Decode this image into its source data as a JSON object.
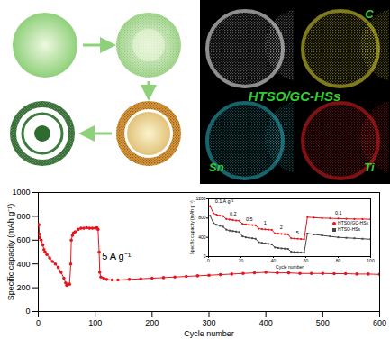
{
  "eds_maps": {
    "label": "HTSO/GC-HSs",
    "elements": [
      "C",
      "Sn",
      "Ti"
    ]
  },
  "chart_data": [
    {
      "type": "line",
      "xlabel": "Cycle number",
      "ylabel": "Specific capacity (mAh g⁻¹)",
      "x": [
        1,
        2,
        3,
        5,
        8,
        10,
        12,
        15,
        20,
        25,
        30,
        35,
        40,
        45,
        48,
        50,
        52,
        55,
        57,
        58,
        60,
        62,
        65,
        70,
        75,
        80,
        85,
        90,
        95,
        100,
        103,
        105,
        107,
        108,
        110,
        115,
        120,
        130,
        140,
        160,
        180,
        200,
        220,
        240,
        260,
        280,
        300,
        320,
        340,
        360,
        380,
        400,
        420,
        440,
        460,
        480,
        500,
        520,
        540,
        560,
        580,
        600
      ],
      "values": [
        730,
        650,
        620,
        600,
        560,
        520,
        500,
        480,
        450,
        420,
        400,
        370,
        330,
        280,
        240,
        220,
        230,
        230,
        400,
        600,
        640,
        660,
        670,
        690,
        700,
        700,
        705,
        700,
        700,
        700,
        705,
        690,
        500,
        330,
        290,
        280,
        270,
        265,
        265,
        270,
        275,
        280,
        285,
        290,
        295,
        300,
        305,
        310,
        315,
        320,
        325,
        330,
        325,
        325,
        320,
        320,
        320,
        318,
        318,
        315,
        315,
        312
      ],
      "color": "#e8141c",
      "marker": "circle",
      "line_style": "solid",
      "xlim": [
        0,
        600
      ],
      "xticks": [
        0,
        100,
        200,
        300,
        400,
        500,
        600
      ],
      "ylim": [
        0,
        1000
      ],
      "yticks": [
        0,
        200,
        400,
        600,
        800,
        1000
      ],
      "annotations": [
        {
          "text": "5 A g⁻¹",
          "x": 112,
          "y": 460
        }
      ]
    },
    {
      "type": "line",
      "xlabel": "Cycle number",
      "ylabel": "Specific capacity (mAh g⁻¹)",
      "x": [
        1,
        3,
        5,
        7,
        9,
        11,
        13,
        15,
        17,
        19,
        21,
        23,
        25,
        27,
        29,
        31,
        33,
        35,
        37,
        39,
        41,
        43,
        45,
        47,
        49,
        51,
        53,
        55,
        57,
        59,
        61,
        65,
        70,
        75,
        80,
        85,
        90,
        95,
        100
      ],
      "series": [
        {
          "name": "HTSO/GC-HSs",
          "color": "#e8141c",
          "marker": "circle",
          "values": [
            1050,
            900,
            870,
            850,
            840,
            780,
            770,
            760,
            750,
            745,
            680,
            670,
            660,
            655,
            650,
            580,
            570,
            565,
            560,
            555,
            480,
            475,
            470,
            465,
            460,
            380,
            375,
            370,
            365,
            360,
            820,
            810,
            800,
            795,
            790,
            785,
            780,
            780,
            775
          ]
        },
        {
          "name": "HTSO-HSs",
          "color": "#444444",
          "marker": "square",
          "values": [
            850,
            700,
            660,
            640,
            620,
            560,
            540,
            530,
            520,
            510,
            420,
            400,
            390,
            380,
            370,
            300,
            285,
            275,
            265,
            255,
            190,
            180,
            170,
            165,
            160,
            100,
            95,
            90,
            85,
            80,
            480,
            460,
            440,
            420,
            400,
            390,
            380,
            370,
            360
          ]
        }
      ],
      "xlim": [
        0,
        100
      ],
      "xticks": [
        0,
        20,
        40,
        60,
        80,
        100
      ],
      "ylim": [
        0,
        1200
      ],
      "yticks": [
        0,
        400,
        800,
        1200
      ],
      "legend": "right",
      "annotations": [
        {
          "text": "0.1 A g⁻¹",
          "x": 4,
          "y": 1150
        },
        {
          "text": "0.2",
          "x": 13,
          "y": 880
        },
        {
          "text": "0.5",
          "x": 23,
          "y": 780
        },
        {
          "text": "1",
          "x": 34,
          "y": 690
        },
        {
          "text": "2",
          "x": 44,
          "y": 600
        },
        {
          "text": "5",
          "x": 54,
          "y": 500
        },
        {
          "text": "0.1",
          "x": 78,
          "y": 900
        }
      ]
    }
  ]
}
